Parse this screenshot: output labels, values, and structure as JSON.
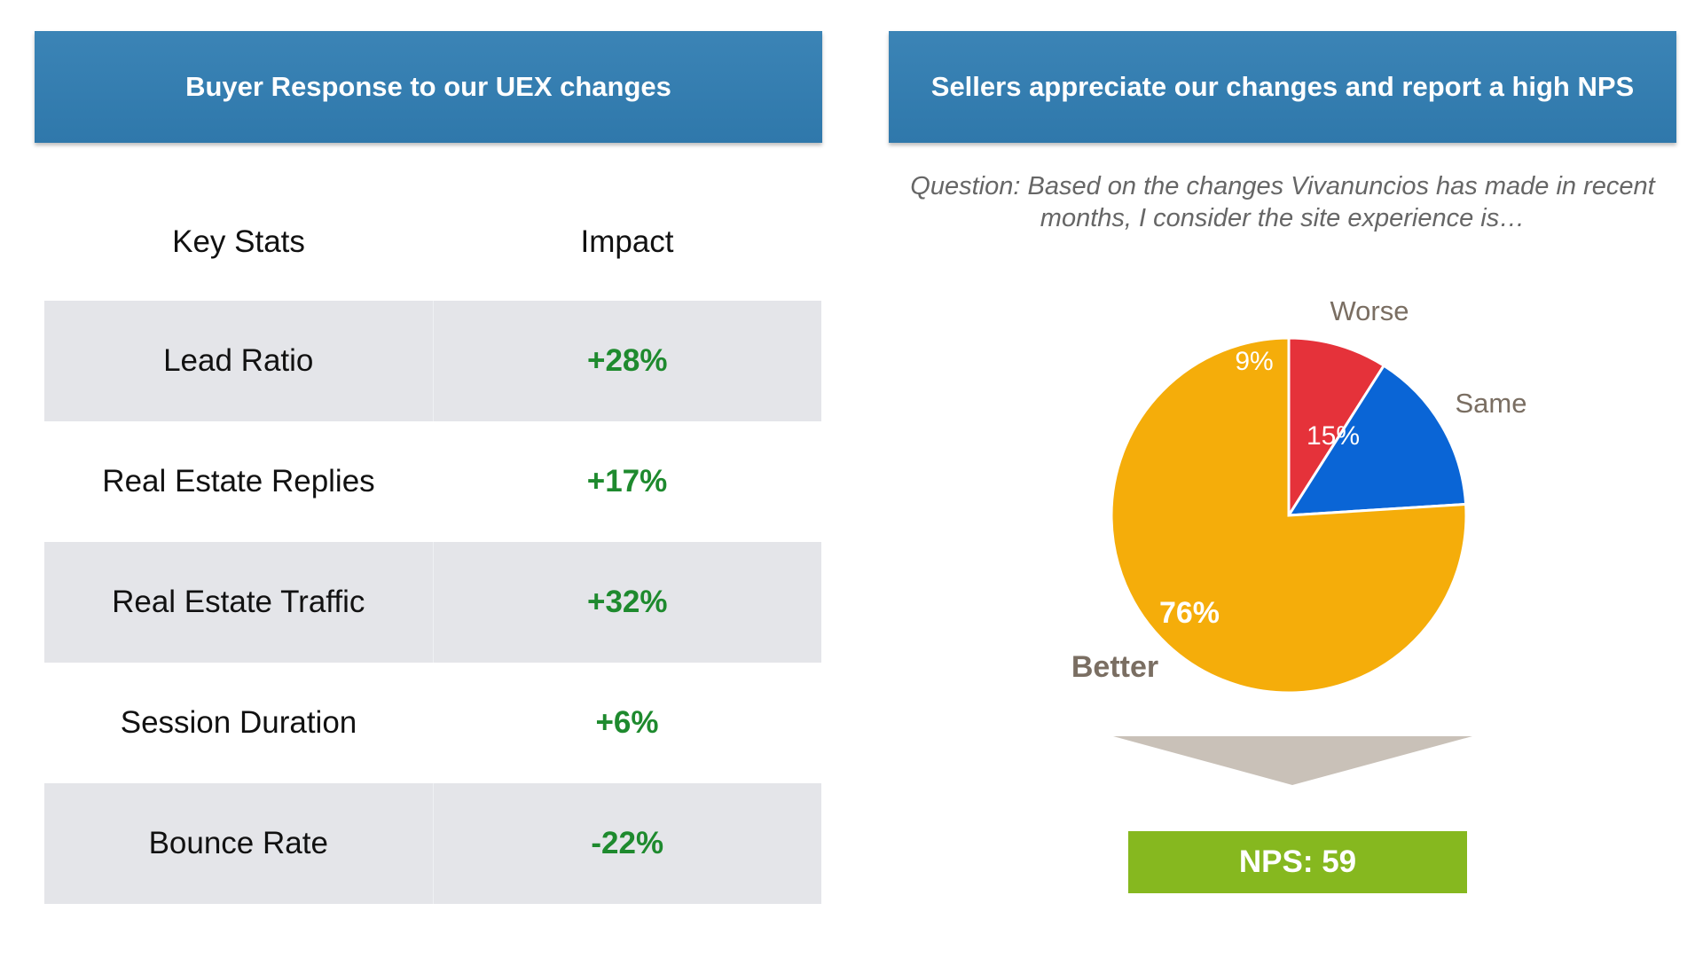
{
  "left_panel": {
    "title": "Buyer Response to our UEX changes",
    "columns": [
      "Key Stats",
      "Impact"
    ],
    "rows": [
      {
        "stat": "Lead Ratio",
        "impact": "+28%"
      },
      {
        "stat": "Real Estate Replies",
        "impact": "+17%"
      },
      {
        "stat": "Real Estate Traffic",
        "impact": "+32%"
      },
      {
        "stat": "Session Duration",
        "impact": "+6%"
      },
      {
        "stat": "Bounce Rate",
        "impact": "-22%"
      }
    ]
  },
  "right_panel": {
    "title": "Sellers appreciate our changes and report a high NPS",
    "question": "Question: Based on the changes Vivanuncios has made in recent months, I consider the site experience is…",
    "nps_label": "NPS: 59"
  },
  "chart_data": {
    "type": "pie",
    "slices": [
      {
        "label": "Worse",
        "value": 9,
        "value_label": "9%",
        "color": "#e5323a"
      },
      {
        "label": "Same",
        "value": 15,
        "value_label": "15%",
        "color": "#0a65d6"
      },
      {
        "label": "Better",
        "value": 76,
        "value_label": "76%",
        "color": "#f5ad0a"
      }
    ],
    "label_color": "#7a6e62"
  },
  "colors": {
    "banner": "#3280b3",
    "impact_text": "#1e8a2e",
    "row_shade": "#e4e5e9",
    "nps_box": "#86b81f",
    "arrow": "#c9c1b8"
  }
}
